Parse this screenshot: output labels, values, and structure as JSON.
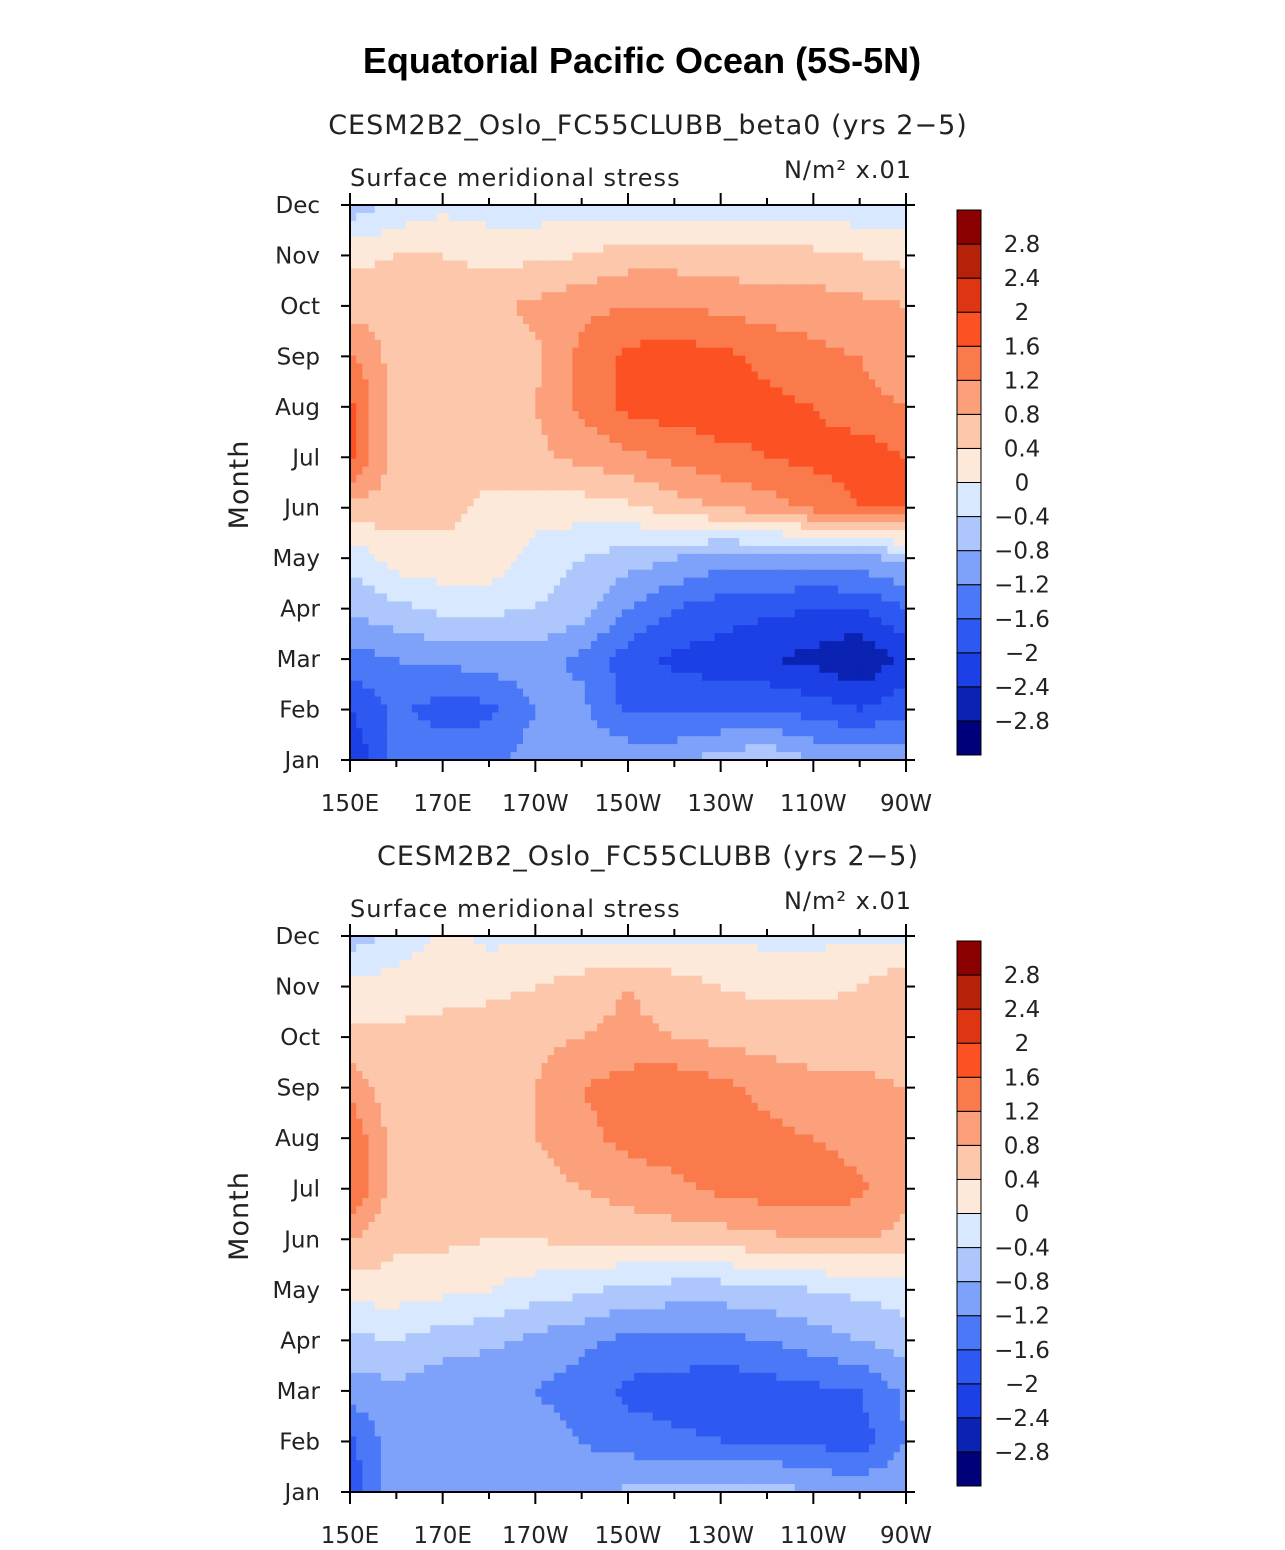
{
  "figure_title": "Equatorial Pacific Ocean (5S-5N)",
  "chart_data": [
    {
      "type": "heatmap",
      "title": "CESM2B2_Oslo_FC55CLUBB_beta0 (yrs 2−5)",
      "left_label": "Surface meridional stress",
      "right_label": "N/m² x.01",
      "xlabel": "",
      "ylabel": "Month",
      "x_ticks": [
        "150E",
        "170E",
        "170W",
        "150W",
        "130W",
        "110W",
        "90W"
      ],
      "x_range_deg_east": [
        150,
        270
      ],
      "y_ticks": [
        "Jan",
        "Feb",
        "Mar",
        "Apr",
        "May",
        "Jun",
        "Jul",
        "Aug",
        "Sep",
        "Oct",
        "Nov",
        "Dec"
      ],
      "x_grid_deg_east": [
        150,
        160,
        170,
        180,
        190,
        200,
        210,
        220,
        230,
        240,
        250,
        260,
        270
      ],
      "values": [
        [
          -2.4,
          -1.4,
          -1.3,
          -1.3,
          -1.0,
          -0.9,
          -0.9,
          -0.9,
          -0.6,
          -0.5,
          -0.8,
          -0.9,
          -0.9
        ],
        [
          -2.0,
          -1.5,
          -1.8,
          -1.7,
          -1.2,
          -1.1,
          -1.7,
          -1.7,
          -1.7,
          -1.6,
          -1.8,
          -2.0,
          -1.7
        ],
        [
          -1.4,
          -1.2,
          -1.1,
          -1.0,
          -1.0,
          -1.3,
          -1.8,
          -2.1,
          -2.2,
          -2.4,
          -2.5,
          -2.8,
          -2.3
        ],
        [
          -0.7,
          -0.5,
          -0.3,
          -0.3,
          -0.4,
          -0.6,
          -1.2,
          -1.6,
          -1.8,
          -1.9,
          -2.0,
          -2.0,
          -1.6
        ],
        [
          -0.3,
          0.2,
          0.3,
          0.3,
          -0.2,
          -0.4,
          -0.6,
          -0.8,
          -1.0,
          -1.0,
          -1.0,
          -0.9,
          -0.7
        ],
        [
          0.7,
          0.6,
          0.5,
          0.3,
          0.2,
          0.2,
          0.3,
          0.6,
          0.8,
          1.0,
          1.3,
          1.6,
          1.6
        ],
        [
          1.7,
          0.6,
          0.6,
          0.6,
          0.7,
          0.9,
          1.1,
          1.3,
          1.5,
          1.6,
          1.7,
          1.8,
          1.6
        ],
        [
          1.7,
          0.6,
          0.5,
          0.6,
          0.8,
          1.3,
          1.7,
          1.8,
          1.8,
          1.7,
          1.6,
          1.4,
          1.2
        ],
        [
          1.3,
          0.6,
          0.5,
          0.6,
          0.7,
          1.3,
          1.7,
          1.8,
          1.7,
          1.5,
          1.3,
          1.2,
          0.8
        ],
        [
          0.6,
          0.6,
          0.6,
          0.7,
          0.9,
          1.1,
          1.2,
          1.2,
          1.1,
          1.0,
          1.0,
          0.9,
          0.8
        ],
        [
          0.3,
          0.4,
          0.4,
          0.3,
          0.3,
          0.4,
          0.6,
          0.6,
          0.6,
          0.5,
          0.5,
          0.4,
          0.3
        ],
        [
          -0.7,
          -0.3,
          -0.1,
          -0.2,
          -0.2,
          -0.2,
          -0.2,
          -0.2,
          -0.2,
          -0.2,
          -0.2,
          -0.3,
          -0.3
        ]
      ]
    },
    {
      "type": "heatmap",
      "title": "CESM2B2_Oslo_FC55CLUBB (yrs 2−5)",
      "left_label": "Surface meridional stress",
      "right_label": "N/m² x.01",
      "xlabel": "",
      "ylabel": "Month",
      "x_ticks": [
        "150E",
        "170E",
        "170W",
        "150W",
        "130W",
        "110W",
        "90W"
      ],
      "x_range_deg_east": [
        150,
        270
      ],
      "y_ticks": [
        "Jan",
        "Feb",
        "Mar",
        "Apr",
        "May",
        "Jun",
        "Jul",
        "Aug",
        "Sep",
        "Oct",
        "Nov",
        "Dec"
      ],
      "x_grid_deg_east": [
        150,
        160,
        170,
        180,
        190,
        200,
        210,
        220,
        230,
        240,
        250,
        260,
        270
      ],
      "values": [
        [
          -1.9,
          -0.8,
          -0.8,
          -0.9,
          -0.9,
          -1.0,
          -0.7,
          -0.7,
          -0.6,
          -0.6,
          -0.8,
          -0.9,
          -0.9
        ],
        [
          -1.7,
          -0.9,
          -0.8,
          -0.9,
          -1.0,
          -1.2,
          -1.4,
          -1.5,
          -1.6,
          -1.6,
          -1.7,
          -1.8,
          -1.2
        ],
        [
          -1.0,
          -0.9,
          -1.1,
          -1.2,
          -1.2,
          -1.4,
          -1.7,
          -1.8,
          -1.9,
          -1.8,
          -1.7,
          -1.6,
          -1.1
        ],
        [
          -0.5,
          -0.4,
          -0.6,
          -0.7,
          -0.9,
          -1.1,
          -1.3,
          -1.3,
          -1.3,
          -1.2,
          -1.0,
          -0.8,
          -0.6
        ],
        [
          0.2,
          0.2,
          0.1,
          0.0,
          -0.2,
          -0.3,
          -0.5,
          -0.6,
          -0.6,
          -0.5,
          -0.4,
          -0.3,
          -0.2
        ],
        [
          0.8,
          0.5,
          0.5,
          0.4,
          0.4,
          0.5,
          0.5,
          0.6,
          0.6,
          0.7,
          0.8,
          0.8,
          0.7
        ],
        [
          1.6,
          0.6,
          0.5,
          0.5,
          0.6,
          0.8,
          1.0,
          1.1,
          1.3,
          1.4,
          1.5,
          1.3,
          0.9
        ],
        [
          1.5,
          0.6,
          0.5,
          0.6,
          0.8,
          1.1,
          1.3,
          1.4,
          1.4,
          1.3,
          1.2,
          1.0,
          0.9
        ],
        [
          1.1,
          0.5,
          0.5,
          0.6,
          0.8,
          1.2,
          1.4,
          1.5,
          1.3,
          1.1,
          0.9,
          0.9,
          0.8
        ],
        [
          0.5,
          0.5,
          0.5,
          0.6,
          0.7,
          0.8,
          0.9,
          0.8,
          0.7,
          0.6,
          0.6,
          0.6,
          0.6
        ],
        [
          0.1,
          0.2,
          0.3,
          0.3,
          0.4,
          0.6,
          0.8,
          0.6,
          0.4,
          0.3,
          0.3,
          0.4,
          0.8
        ],
        [
          -0.6,
          -0.3,
          0.1,
          -0.1,
          -0.1,
          -0.1,
          -0.2,
          -0.1,
          -0.1,
          -0.1,
          -0.1,
          -0.1,
          -0.2
        ]
      ]
    }
  ],
  "colorbar": {
    "labels": [
      "2.8",
      "2.4",
      "2",
      "1.6",
      "1.2",
      "0.8",
      "0.4",
      "0",
      "−0.4",
      "−0.8",
      "−1.2",
      "−1.6",
      "−2",
      "−2.4",
      "−2.8"
    ],
    "levels": [
      -2.8,
      -2.4,
      -2.0,
      -1.6,
      -1.2,
      -0.8,
      -0.4,
      0.0,
      0.4,
      0.8,
      1.2,
      1.6,
      2.0,
      2.4,
      2.8
    ],
    "colors_low_to_high": [
      "#00007a",
      "#0a23b3",
      "#1c3fe6",
      "#2d58f2",
      "#4b78f6",
      "#7ea2fa",
      "#adc6fc",
      "#d8e8fe",
      "#fde9d9",
      "#fcc7ab",
      "#fba07a",
      "#fb7a4c",
      "#fb5123",
      "#de3512",
      "#b5220a",
      "#8b0000"
    ]
  }
}
